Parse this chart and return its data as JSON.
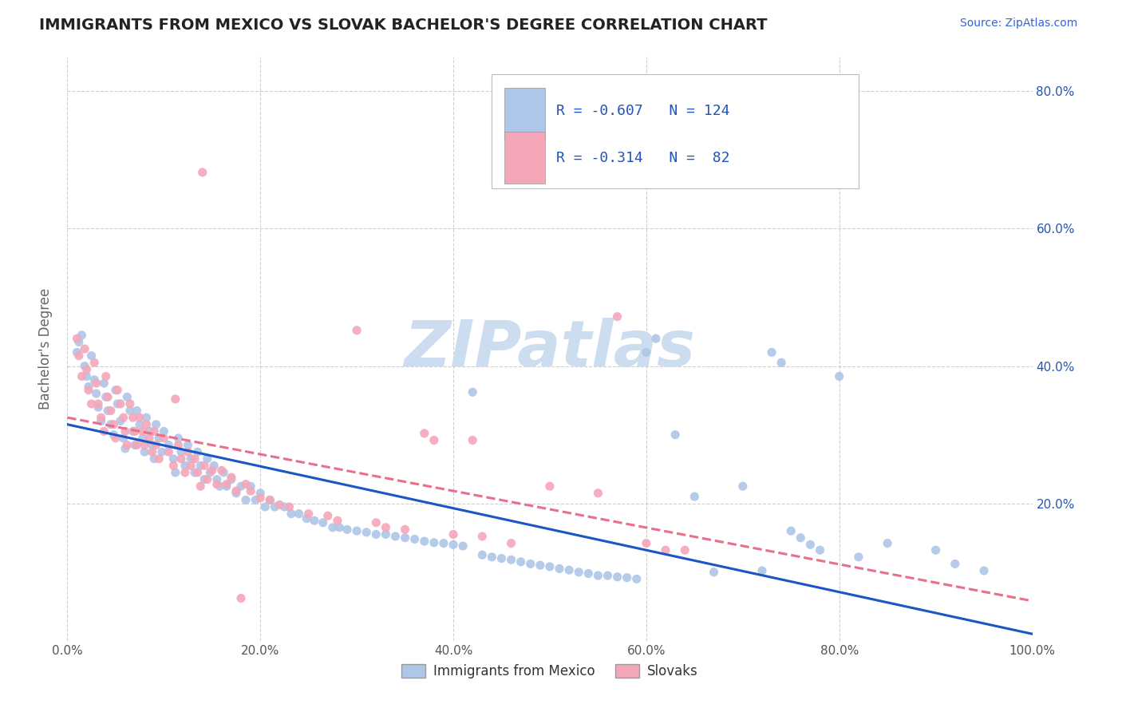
{
  "title": "IMMIGRANTS FROM MEXICO VS SLOVAK BACHELOR'S DEGREE CORRELATION CHART",
  "source_text": "Source: ZipAtlas.com",
  "ylabel": "Bachelor's Degree",
  "xlim": [
    0.0,
    1.0
  ],
  "ylim": [
    0.0,
    0.85
  ],
  "x_tick_labels": [
    "0.0%",
    "20.0%",
    "40.0%",
    "60.0%",
    "80.0%",
    "100.0%"
  ],
  "x_tick_vals": [
    0.0,
    0.2,
    0.4,
    0.6,
    0.8,
    1.0
  ],
  "y_tick_labels": [
    "20.0%",
    "40.0%",
    "60.0%",
    "80.0%"
  ],
  "y_tick_vals": [
    0.2,
    0.4,
    0.6,
    0.8
  ],
  "legend_entries": [
    {
      "label": "Immigrants from Mexico",
      "color": "#aec6e8"
    },
    {
      "label": "Slovaks",
      "color": "#f4a7b9"
    }
  ],
  "rn_data": [
    {
      "R": "-0.607",
      "N": "124"
    },
    {
      "R": "-0.314",
      "N": " 82"
    }
  ],
  "scatter_blue_color": "#aec6e8",
  "scatter_pink_color": "#f4a7b9",
  "line_blue_color": "#1a56c4",
  "line_pink_color": "#e8708a",
  "rn_text_color": "#2255bb",
  "watermark_color": "#ccddf0",
  "title_color": "#222222",
  "background_color": "#ffffff",
  "grid_color": "#bbbbbb",
  "source_color": "#3366cc",
  "blue_scatter": [
    [
      0.01,
      0.42
    ],
    [
      0.012,
      0.435
    ],
    [
      0.015,
      0.445
    ],
    [
      0.018,
      0.4
    ],
    [
      0.02,
      0.385
    ],
    [
      0.022,
      0.37
    ],
    [
      0.025,
      0.415
    ],
    [
      0.028,
      0.38
    ],
    [
      0.03,
      0.36
    ],
    [
      0.032,
      0.34
    ],
    [
      0.035,
      0.32
    ],
    [
      0.038,
      0.375
    ],
    [
      0.04,
      0.355
    ],
    [
      0.042,
      0.335
    ],
    [
      0.045,
      0.315
    ],
    [
      0.048,
      0.3
    ],
    [
      0.05,
      0.365
    ],
    [
      0.052,
      0.345
    ],
    [
      0.055,
      0.32
    ],
    [
      0.058,
      0.295
    ],
    [
      0.06,
      0.28
    ],
    [
      0.062,
      0.355
    ],
    [
      0.065,
      0.335
    ],
    [
      0.068,
      0.305
    ],
    [
      0.07,
      0.285
    ],
    [
      0.072,
      0.335
    ],
    [
      0.075,
      0.315
    ],
    [
      0.078,
      0.295
    ],
    [
      0.08,
      0.275
    ],
    [
      0.082,
      0.325
    ],
    [
      0.085,
      0.305
    ],
    [
      0.088,
      0.285
    ],
    [
      0.09,
      0.265
    ],
    [
      0.092,
      0.315
    ],
    [
      0.095,
      0.295
    ],
    [
      0.098,
      0.275
    ],
    [
      0.1,
      0.305
    ],
    [
      0.105,
      0.285
    ],
    [
      0.11,
      0.265
    ],
    [
      0.112,
      0.245
    ],
    [
      0.115,
      0.295
    ],
    [
      0.118,
      0.275
    ],
    [
      0.122,
      0.255
    ],
    [
      0.125,
      0.285
    ],
    [
      0.128,
      0.265
    ],
    [
      0.132,
      0.245
    ],
    [
      0.135,
      0.275
    ],
    [
      0.138,
      0.255
    ],
    [
      0.142,
      0.235
    ],
    [
      0.145,
      0.265
    ],
    [
      0.148,
      0.245
    ],
    [
      0.152,
      0.255
    ],
    [
      0.155,
      0.235
    ],
    [
      0.158,
      0.225
    ],
    [
      0.162,
      0.245
    ],
    [
      0.165,
      0.225
    ],
    [
      0.17,
      0.235
    ],
    [
      0.175,
      0.215
    ],
    [
      0.18,
      0.225
    ],
    [
      0.185,
      0.205
    ],
    [
      0.19,
      0.225
    ],
    [
      0.195,
      0.205
    ],
    [
      0.2,
      0.215
    ],
    [
      0.205,
      0.195
    ],
    [
      0.21,
      0.205
    ],
    [
      0.215,
      0.195
    ],
    [
      0.225,
      0.195
    ],
    [
      0.232,
      0.185
    ],
    [
      0.24,
      0.185
    ],
    [
      0.248,
      0.178
    ],
    [
      0.256,
      0.175
    ],
    [
      0.265,
      0.172
    ],
    [
      0.275,
      0.165
    ],
    [
      0.282,
      0.165
    ],
    [
      0.29,
      0.162
    ],
    [
      0.3,
      0.16
    ],
    [
      0.31,
      0.158
    ],
    [
      0.32,
      0.155
    ],
    [
      0.33,
      0.155
    ],
    [
      0.34,
      0.152
    ],
    [
      0.35,
      0.15
    ],
    [
      0.36,
      0.148
    ],
    [
      0.37,
      0.145
    ],
    [
      0.38,
      0.143
    ],
    [
      0.39,
      0.142
    ],
    [
      0.4,
      0.14
    ],
    [
      0.41,
      0.138
    ],
    [
      0.42,
      0.362
    ],
    [
      0.43,
      0.125
    ],
    [
      0.44,
      0.122
    ],
    [
      0.45,
      0.12
    ],
    [
      0.46,
      0.118
    ],
    [
      0.47,
      0.115
    ],
    [
      0.48,
      0.112
    ],
    [
      0.49,
      0.11
    ],
    [
      0.5,
      0.108
    ],
    [
      0.51,
      0.105
    ],
    [
      0.52,
      0.103
    ],
    [
      0.53,
      0.1
    ],
    [
      0.54,
      0.098
    ],
    [
      0.55,
      0.095
    ],
    [
      0.56,
      0.095
    ],
    [
      0.57,
      0.093
    ],
    [
      0.58,
      0.092
    ],
    [
      0.59,
      0.09
    ],
    [
      0.6,
      0.42
    ],
    [
      0.61,
      0.44
    ],
    [
      0.63,
      0.3
    ],
    [
      0.65,
      0.21
    ],
    [
      0.67,
      0.1
    ],
    [
      0.7,
      0.225
    ],
    [
      0.72,
      0.102
    ],
    [
      0.73,
      0.42
    ],
    [
      0.74,
      0.405
    ],
    [
      0.75,
      0.16
    ],
    [
      0.76,
      0.15
    ],
    [
      0.77,
      0.14
    ],
    [
      0.78,
      0.132
    ],
    [
      0.8,
      0.385
    ],
    [
      0.82,
      0.122
    ],
    [
      0.85,
      0.142
    ],
    [
      0.9,
      0.132
    ],
    [
      0.92,
      0.112
    ],
    [
      0.95,
      0.102
    ]
  ],
  "pink_scatter": [
    [
      0.01,
      0.44
    ],
    [
      0.012,
      0.415
    ],
    [
      0.015,
      0.385
    ],
    [
      0.018,
      0.425
    ],
    [
      0.02,
      0.395
    ],
    [
      0.022,
      0.365
    ],
    [
      0.025,
      0.345
    ],
    [
      0.028,
      0.405
    ],
    [
      0.03,
      0.375
    ],
    [
      0.032,
      0.345
    ],
    [
      0.035,
      0.325
    ],
    [
      0.038,
      0.305
    ],
    [
      0.04,
      0.385
    ],
    [
      0.042,
      0.355
    ],
    [
      0.045,
      0.335
    ],
    [
      0.048,
      0.315
    ],
    [
      0.05,
      0.295
    ],
    [
      0.052,
      0.365
    ],
    [
      0.055,
      0.345
    ],
    [
      0.058,
      0.325
    ],
    [
      0.06,
      0.305
    ],
    [
      0.062,
      0.285
    ],
    [
      0.065,
      0.345
    ],
    [
      0.068,
      0.325
    ],
    [
      0.07,
      0.305
    ],
    [
      0.072,
      0.285
    ],
    [
      0.075,
      0.325
    ],
    [
      0.078,
      0.305
    ],
    [
      0.08,
      0.285
    ],
    [
      0.082,
      0.315
    ],
    [
      0.085,
      0.295
    ],
    [
      0.088,
      0.275
    ],
    [
      0.09,
      0.305
    ],
    [
      0.092,
      0.285
    ],
    [
      0.095,
      0.265
    ],
    [
      0.1,
      0.295
    ],
    [
      0.105,
      0.275
    ],
    [
      0.11,
      0.255
    ],
    [
      0.112,
      0.352
    ],
    [
      0.115,
      0.285
    ],
    [
      0.118,
      0.265
    ],
    [
      0.122,
      0.245
    ],
    [
      0.125,
      0.275
    ],
    [
      0.128,
      0.255
    ],
    [
      0.132,
      0.265
    ],
    [
      0.135,
      0.245
    ],
    [
      0.138,
      0.225
    ],
    [
      0.14,
      0.682
    ],
    [
      0.142,
      0.255
    ],
    [
      0.145,
      0.235
    ],
    [
      0.15,
      0.248
    ],
    [
      0.155,
      0.228
    ],
    [
      0.16,
      0.248
    ],
    [
      0.165,
      0.228
    ],
    [
      0.17,
      0.238
    ],
    [
      0.175,
      0.218
    ],
    [
      0.18,
      0.062
    ],
    [
      0.185,
      0.228
    ],
    [
      0.19,
      0.218
    ],
    [
      0.2,
      0.208
    ],
    [
      0.21,
      0.205
    ],
    [
      0.22,
      0.198
    ],
    [
      0.23,
      0.195
    ],
    [
      0.25,
      0.185
    ],
    [
      0.27,
      0.182
    ],
    [
      0.28,
      0.175
    ],
    [
      0.3,
      0.452
    ],
    [
      0.32,
      0.172
    ],
    [
      0.33,
      0.165
    ],
    [
      0.35,
      0.162
    ],
    [
      0.37,
      0.302
    ],
    [
      0.38,
      0.292
    ],
    [
      0.4,
      0.155
    ],
    [
      0.42,
      0.292
    ],
    [
      0.43,
      0.152
    ],
    [
      0.46,
      0.142
    ],
    [
      0.5,
      0.225
    ],
    [
      0.55,
      0.215
    ],
    [
      0.57,
      0.472
    ],
    [
      0.6,
      0.142
    ],
    [
      0.62,
      0.132
    ],
    [
      0.64,
      0.132
    ]
  ],
  "blue_line": {
    "x0": 0.0,
    "y0": 0.315,
    "x1": 1.0,
    "y1": 0.01
  },
  "pink_line": {
    "x0": 0.0,
    "y0": 0.325,
    "x1": 1.0,
    "y1": 0.058
  }
}
